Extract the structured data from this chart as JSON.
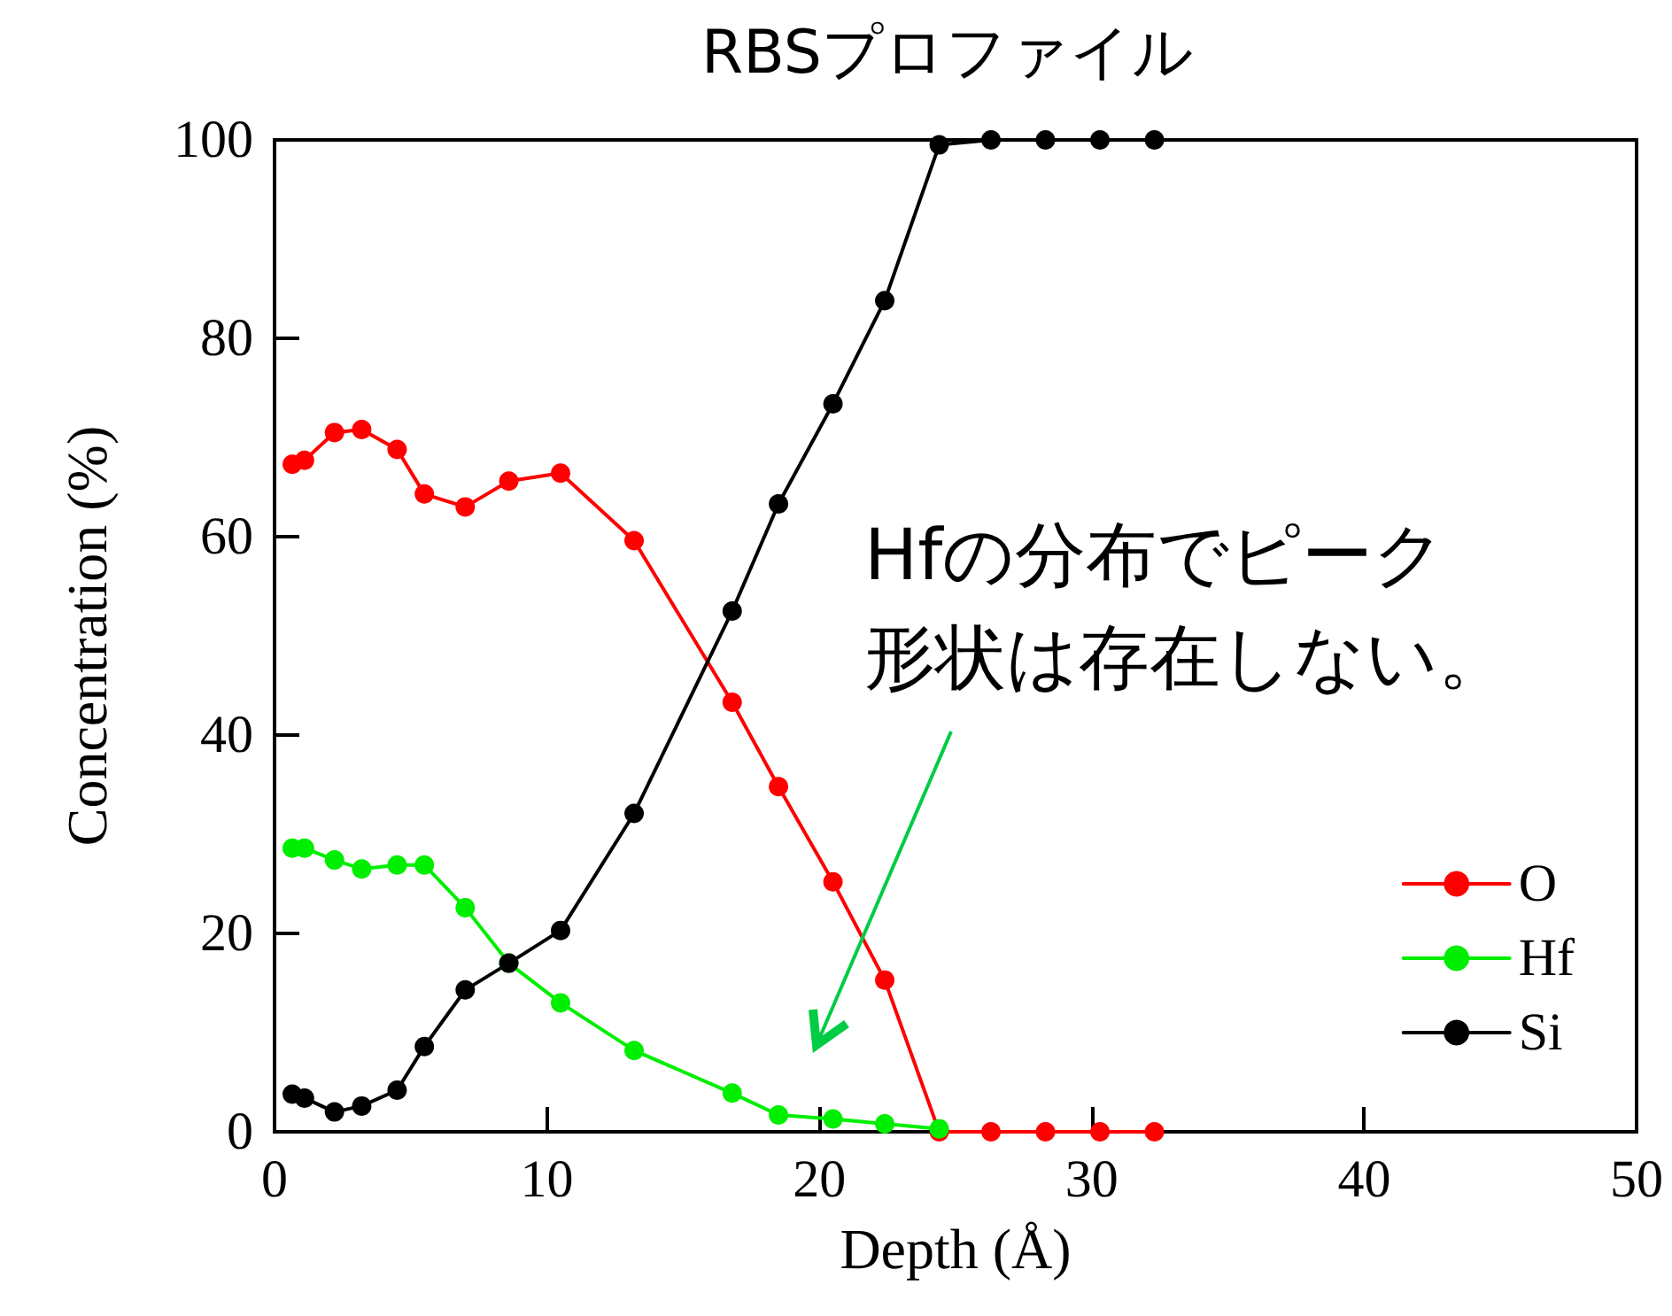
{
  "chart_data": {
    "type": "line",
    "title": "RBSプロファイル",
    "xlabel": "Depth (Å)",
    "ylabel": "Concentration (%)",
    "x": [
      0.65,
      1.1,
      2.2,
      3.2,
      4.5,
      5.5,
      7.0,
      8.6,
      10.5,
      13.2,
      16.8,
      18.5,
      20.5,
      22.4,
      24.4,
      26.3,
      28.3,
      30.3,
      32.3
    ],
    "series": [
      {
        "name": "O",
        "color": "#ff0000",
        "values": [
          67.3,
          67.7,
          70.5,
          70.8,
          68.8,
          64.3,
          63.0,
          65.6,
          66.4,
          59.6,
          43.3,
          34.8,
          25.2,
          15.3,
          0,
          0,
          0,
          0,
          0
        ]
      },
      {
        "name": "Hf",
        "color": "#00ee00",
        "values": [
          28.6,
          28.6,
          27.4,
          26.5,
          26.9,
          26.9,
          22.6,
          17.0,
          13.0,
          8.2,
          3.9,
          1.7,
          1.3,
          0.8,
          0.3,
          null,
          null,
          null,
          null
        ]
      },
      {
        "name": "Si",
        "color": "#000000",
        "values": [
          3.8,
          3.4,
          2.0,
          2.6,
          4.2,
          8.6,
          14.3,
          17.0,
          20.3,
          32.1,
          52.5,
          63.3,
          73.4,
          83.8,
          99.5,
          100,
          100,
          100,
          100
        ]
      }
    ],
    "xlim": [
      0,
      50
    ],
    "xticks": [
      0,
      10,
      20,
      30,
      40,
      50
    ],
    "ylim": [
      0,
      100
    ],
    "yticks": [
      0,
      20,
      40,
      60,
      80,
      100
    ],
    "grid": false,
    "legend": "bottom right",
    "marker": "circle",
    "line_style": "solid",
    "annotations": [
      "Hfの分布でピーク形状は存在しない。"
    ]
  }
}
